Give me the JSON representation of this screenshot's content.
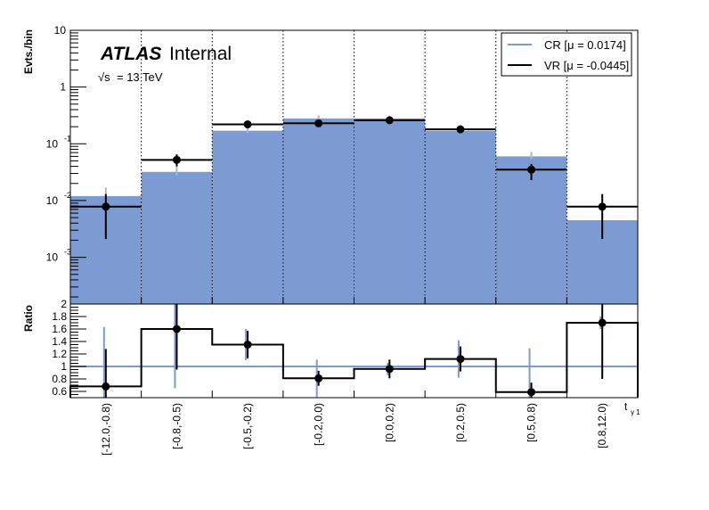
{
  "chart_data": {
    "type": "bar",
    "categories": [
      "[-12.0,-0.8)",
      "[-0.8,-0.5)",
      "[-0.5,-0.2)",
      "[-0.2,0.0)",
      "[0.0,0.2)",
      "[0.2,0.5)",
      "[0.5,0.8)",
      "[0.8,12.0)"
    ],
    "label_atlas": "ATLAS",
    "label_status": "Internal",
    "label_energy_sqrt": "√s",
    "label_energy_value": "= 13 TeV",
    "xlabel": "t",
    "xlabel_sub": "γ 1",
    "top_panel": {
      "ylabel": "Evts./bin",
      "yscale": "log",
      "ylim": [
        0.00015,
        10
      ],
      "yticks": [
        {
          "value": 0.001,
          "base": "10",
          "exp": "-3"
        },
        {
          "value": 0.01,
          "base": "10",
          "exp": "-2"
        },
        {
          "value": 0.1,
          "base": "10",
          "exp": "-1"
        },
        {
          "value": 1,
          "base": "1",
          "exp": ""
        },
        {
          "value": 10,
          "base": "10",
          "exp": ""
        }
      ],
      "series": [
        {
          "name": "CR [μ = 0.0174]",
          "kind": "filled-histogram",
          "color": "#7b9bd2",
          "values": [
            0.012,
            0.032,
            0.17,
            0.28,
            0.28,
            0.17,
            0.06,
            0.0045
          ],
          "err_low": [
            0.0015,
            0.004,
            0.015,
            0.02,
            0.02,
            0.015,
            0.006,
            0.0008
          ],
          "err_high": [
            0.005,
            0.012,
            0.02,
            0.035,
            0.035,
            0.02,
            0.012,
            0.0015
          ]
        },
        {
          "name": "VR [μ = -0.0445]",
          "kind": "points",
          "color": "#000000",
          "values": [
            0.0078,
            0.052,
            0.22,
            0.23,
            0.26,
            0.18,
            0.035,
            0.0078
          ],
          "err_low": [
            0.0057,
            0.012,
            0.02,
            0.02,
            0.02,
            0.015,
            0.012,
            0.0057
          ],
          "err_high": [
            0.0052,
            0.013,
            0.02,
            0.02,
            0.02,
            0.015,
            0.009,
            0.0052
          ]
        }
      ]
    },
    "ratio_panel": {
      "ylabel": "Ratio",
      "ylim": [
        0.5,
        2.0
      ],
      "yticks": [
        "0.6",
        "0.8",
        "1",
        "1.2",
        "1.4",
        "1.6",
        "1.8",
        "2"
      ],
      "reference_line": 1.0,
      "values": [
        0.68,
        1.6,
        1.35,
        0.81,
        0.96,
        1.12,
        0.59,
        1.7
      ],
      "err_black": [
        0.6,
        0.65,
        0.22,
        0.12,
        0.15,
        0.2,
        0.15,
        0.9
      ],
      "err_blue": [
        0.95,
        0.95,
        0.25,
        0.3,
        0.1,
        0.3,
        0.7,
        0.1
      ]
    }
  }
}
